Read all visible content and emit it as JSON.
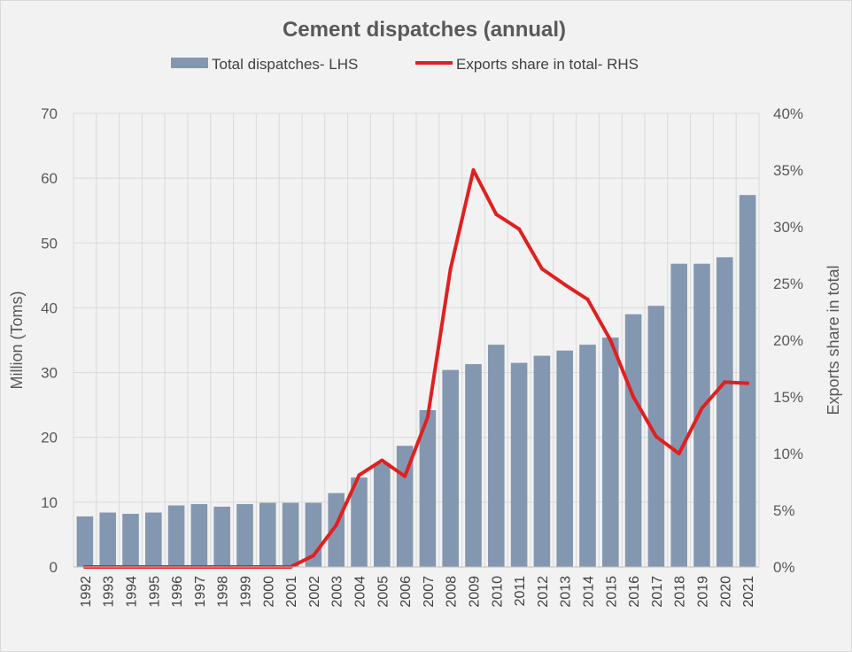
{
  "chart_data": {
    "type": "bar",
    "title": "Cement dispatches (annual)",
    "categories": [
      "1992",
      "1993",
      "1994",
      "1995",
      "1996",
      "1997",
      "1998",
      "1999",
      "2000",
      "2001",
      "2002",
      "2003",
      "2004",
      "2005",
      "2006",
      "2007",
      "2008",
      "2009",
      "2010",
      "2011",
      "2012",
      "2013",
      "2014",
      "2015",
      "2016",
      "2017",
      "2018",
      "2019",
      "2020",
      "2021"
    ],
    "series": [
      {
        "name": "Total dispatches- LHS",
        "type": "bar",
        "axis": "left",
        "color": "#8497b0",
        "values": [
          7.8,
          8.4,
          8.2,
          8.4,
          9.5,
          9.7,
          9.3,
          9.7,
          9.9,
          9.9,
          9.9,
          11.4,
          13.8,
          16.0,
          18.7,
          24.2,
          30.4,
          31.3,
          34.3,
          31.5,
          32.6,
          33.4,
          34.3,
          35.4,
          39.0,
          40.3,
          46.8,
          46.8,
          47.8,
          57.4
        ]
      },
      {
        "name": "Exports share in total- RHS",
        "type": "line",
        "axis": "right",
        "color": "#e02020",
        "values": [
          0.0,
          0.0,
          0.0,
          0.0,
          0.0,
          0.0,
          0.0,
          0.0,
          0.0,
          0.0,
          1.0,
          3.7,
          8.1,
          9.4,
          8.0,
          13.2,
          26.3,
          35.0,
          31.1,
          29.8,
          26.3,
          24.9,
          23.6,
          20.0,
          15.0,
          11.5,
          10.0,
          14.0,
          16.3,
          16.2
        ]
      }
    ],
    "ylabel": "Million (Toms)",
    "y2label": "Exports share in total",
    "ylim": [
      0,
      70
    ],
    "y2lim": [
      0,
      40
    ],
    "yticks": [
      "0",
      "10",
      "20",
      "30",
      "40",
      "50",
      "60",
      "70"
    ],
    "y2ticks": [
      "0%",
      "5%",
      "10%",
      "15%",
      "20%",
      "25%",
      "30%",
      "35%",
      "40%"
    ],
    "legend": "top",
    "grid": true
  }
}
